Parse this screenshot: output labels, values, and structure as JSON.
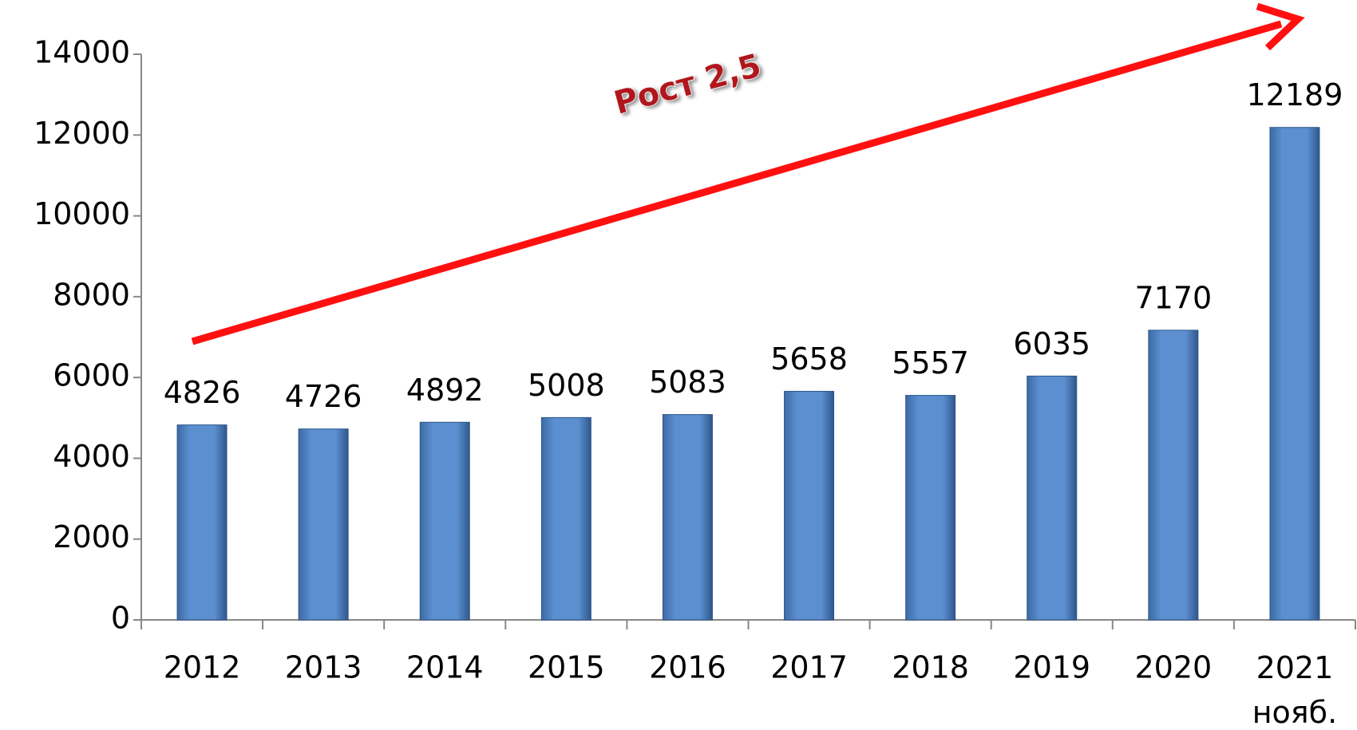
{
  "chart_data": {
    "type": "bar",
    "annotation": "Рост 2,5",
    "categories": [
      "2012",
      "2013",
      "2014",
      "2015",
      "2016",
      "2017",
      "2018",
      "2019",
      "2020",
      "2021\nнояб."
    ],
    "values": [
      4826,
      4726,
      4892,
      5008,
      5083,
      5658,
      5557,
      6035,
      7170,
      12189
    ],
    "color": "#4f81bd",
    "ylim": [
      0,
      14000
    ],
    "yticks": [
      0,
      2000,
      4000,
      6000,
      8000,
      10000,
      12000,
      14000
    ],
    "grid": false
  }
}
